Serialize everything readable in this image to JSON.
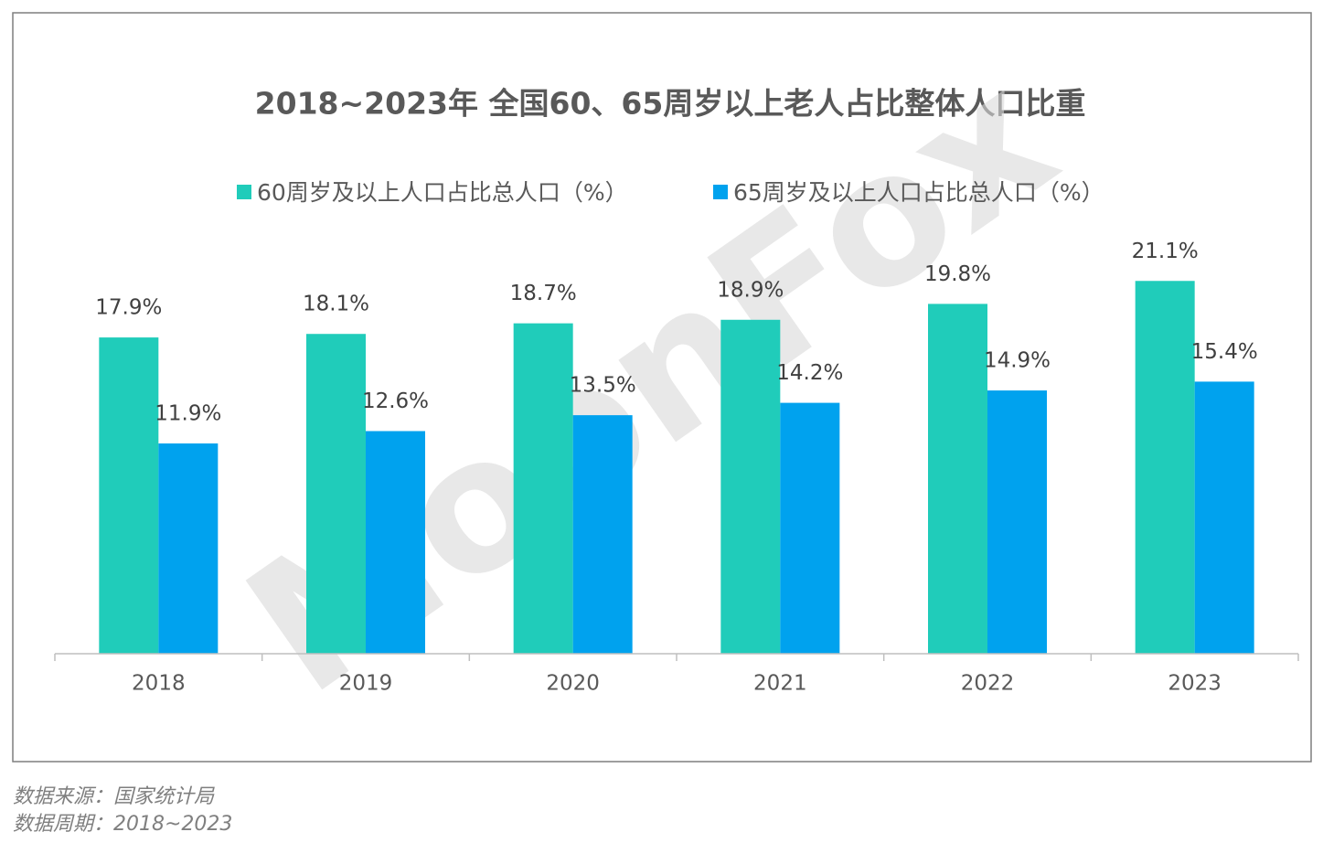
{
  "chart_data": {
    "type": "bar",
    "title": "2018~2023年 全国60、65周岁以上老人占比整体人口比重",
    "categories": [
      "2018",
      "2019",
      "2020",
      "2021",
      "2022",
      "2023"
    ],
    "series": [
      {
        "name": "60周岁及以上人口占比总人口（%）",
        "color": "#20ccba",
        "values": [
          17.9,
          18.1,
          18.7,
          18.9,
          19.8,
          21.1
        ],
        "value_labels": [
          "17.9%",
          "18.1%",
          "18.7%",
          "18.9%",
          "19.8%",
          "21.1%"
        ]
      },
      {
        "name": "65周岁及以上人口占比总人口（%）",
        "color": "#00a2ee",
        "values": [
          11.9,
          12.6,
          13.5,
          14.2,
          14.9,
          15.4
        ],
        "value_labels": [
          "11.9%",
          "12.6%",
          "13.5%",
          "14.2%",
          "14.9%",
          "15.4%"
        ]
      }
    ],
    "ylim": [
      0,
      37
    ],
    "watermark": "MoonFox"
  },
  "footer": {
    "source": "数据来源：国家统计局",
    "period": "数据周期：2018~2023"
  }
}
